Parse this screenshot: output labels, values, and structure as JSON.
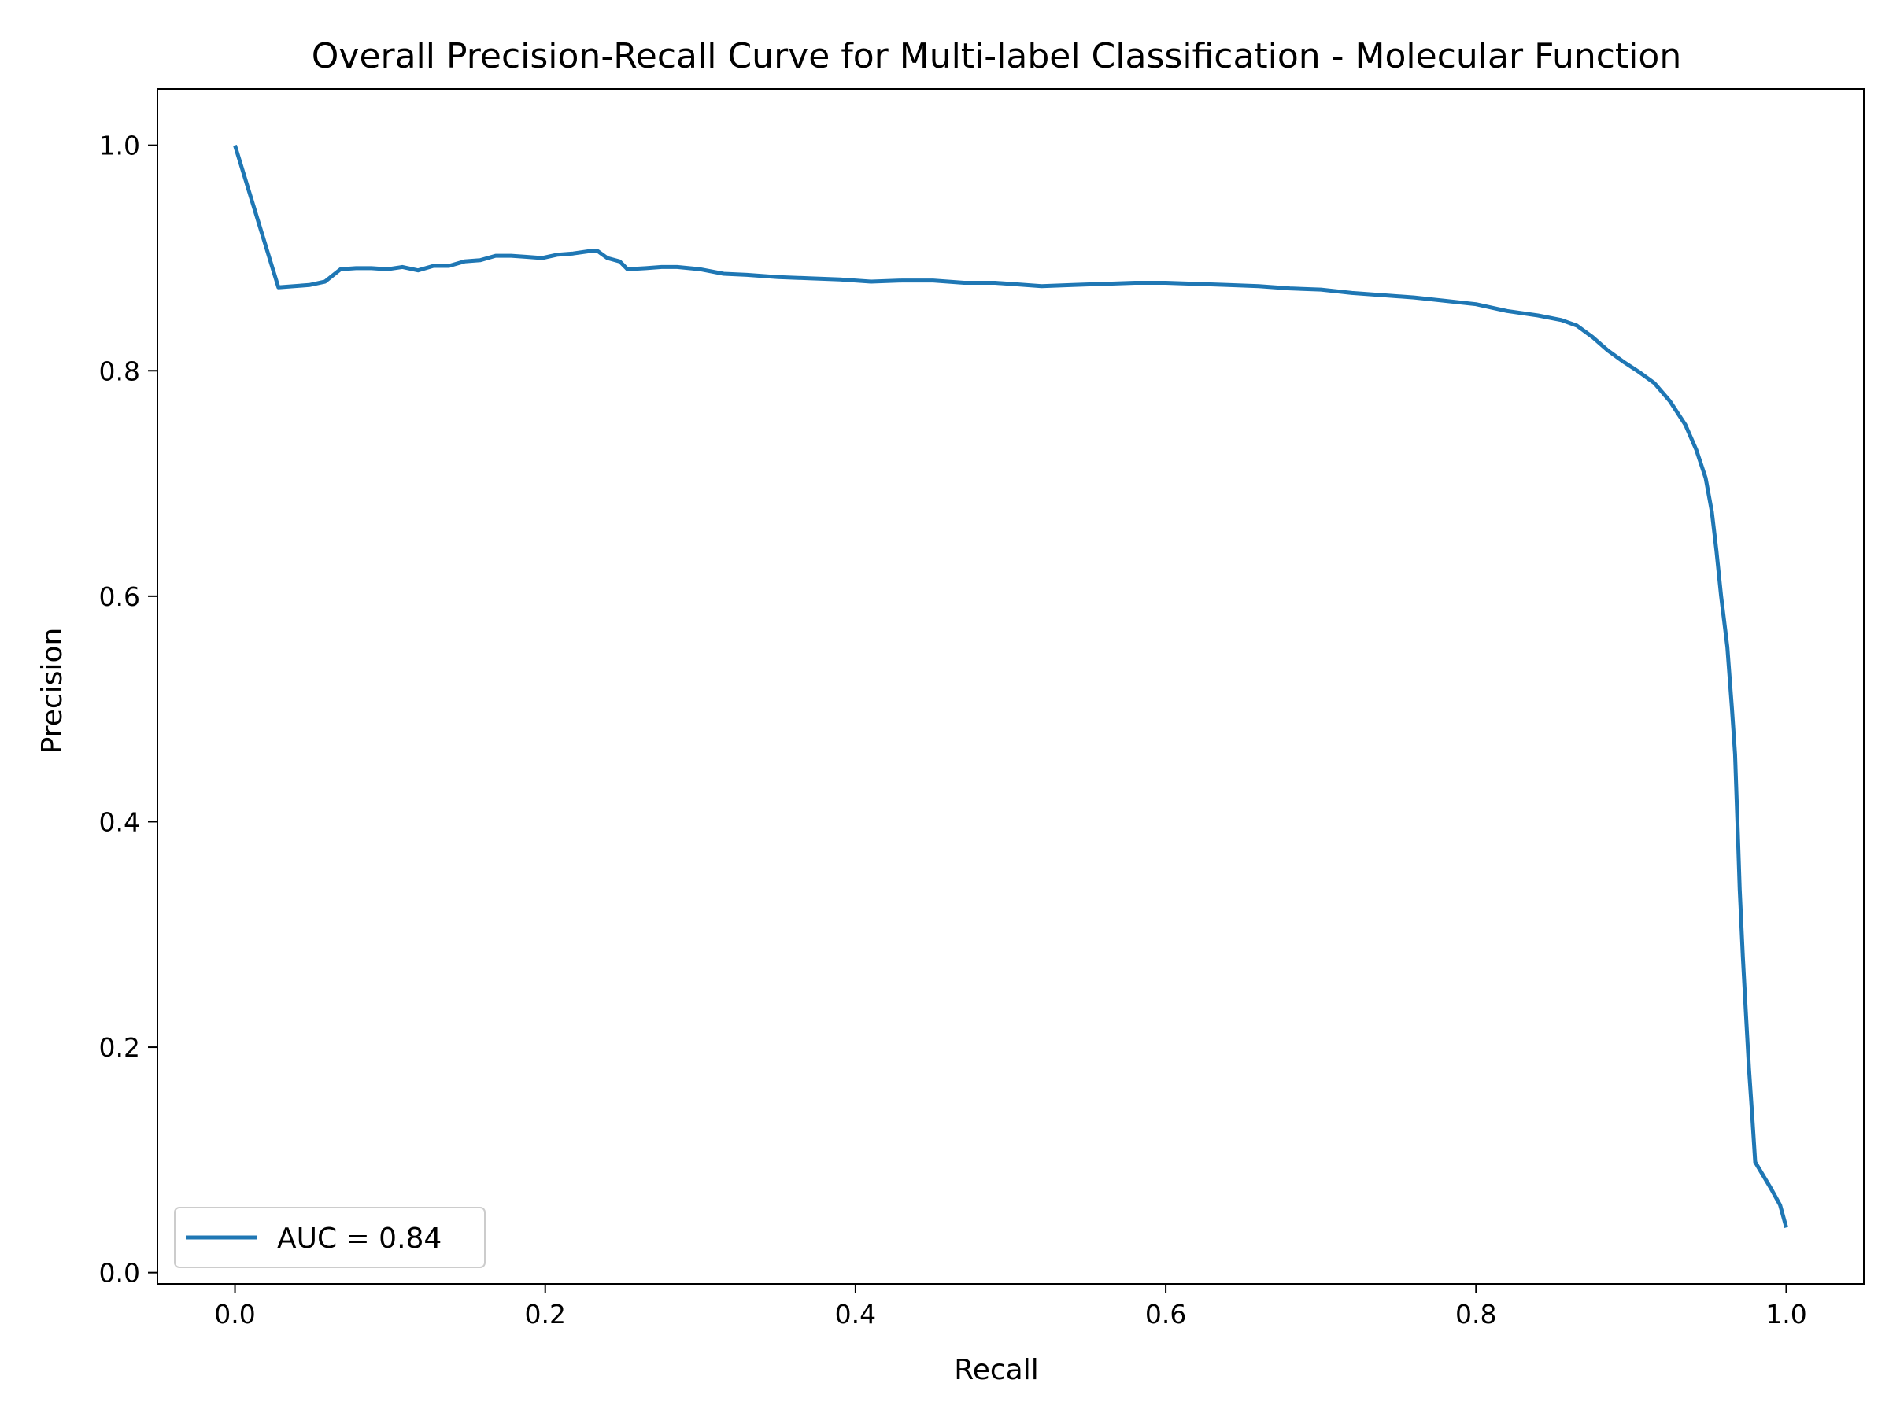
{
  "chart_data": {
    "type": "line",
    "title": "Overall Precision-Recall Curve for Multi-label Classification - Molecular Function",
    "xlabel": "Recall",
    "ylabel": "Precision",
    "xlim": [
      -0.05,
      1.05
    ],
    "ylim": [
      -0.01,
      1.05
    ],
    "xticks": [
      0.0,
      0.2,
      0.4,
      0.6,
      0.8,
      1.0
    ],
    "xtick_labels": [
      "0.0",
      "0.2",
      "0.4",
      "0.6",
      "0.8",
      "1.0"
    ],
    "yticks": [
      0.0,
      0.2,
      0.4,
      0.6,
      0.8,
      1.0
    ],
    "ytick_labels": [
      "0.0",
      "0.2",
      "0.4",
      "0.6",
      "0.8",
      "1.0"
    ],
    "grid": false,
    "legend_placement": "lower-left",
    "series": [
      {
        "name": "AUC = 0.84",
        "color": "#1f77b4",
        "points": [
          [
            0.0,
            1.0
          ],
          [
            0.028,
            0.874
          ],
          [
            0.048,
            0.876
          ],
          [
            0.058,
            0.879
          ],
          [
            0.068,
            0.89
          ],
          [
            0.078,
            0.891
          ],
          [
            0.088,
            0.891
          ],
          [
            0.098,
            0.89
          ],
          [
            0.108,
            0.892
          ],
          [
            0.118,
            0.889
          ],
          [
            0.128,
            0.893
          ],
          [
            0.138,
            0.893
          ],
          [
            0.148,
            0.897
          ],
          [
            0.158,
            0.898
          ],
          [
            0.168,
            0.902
          ],
          [
            0.178,
            0.902
          ],
          [
            0.188,
            0.901
          ],
          [
            0.198,
            0.9
          ],
          [
            0.208,
            0.903
          ],
          [
            0.218,
            0.904
          ],
          [
            0.228,
            0.906
          ],
          [
            0.234,
            0.906
          ],
          [
            0.24,
            0.9
          ],
          [
            0.248,
            0.897
          ],
          [
            0.253,
            0.89
          ],
          [
            0.265,
            0.891
          ],
          [
            0.275,
            0.892
          ],
          [
            0.285,
            0.892
          ],
          [
            0.3,
            0.89
          ],
          [
            0.315,
            0.886
          ],
          [
            0.33,
            0.885
          ],
          [
            0.35,
            0.883
          ],
          [
            0.37,
            0.882
          ],
          [
            0.39,
            0.881
          ],
          [
            0.41,
            0.879
          ],
          [
            0.43,
            0.88
          ],
          [
            0.45,
            0.88
          ],
          [
            0.47,
            0.878
          ],
          [
            0.49,
            0.878
          ],
          [
            0.5,
            0.877
          ],
          [
            0.52,
            0.875
          ],
          [
            0.54,
            0.876
          ],
          [
            0.56,
            0.877
          ],
          [
            0.58,
            0.878
          ],
          [
            0.6,
            0.878
          ],
          [
            0.62,
            0.877
          ],
          [
            0.64,
            0.876
          ],
          [
            0.66,
            0.875
          ],
          [
            0.68,
            0.873
          ],
          [
            0.7,
            0.872
          ],
          [
            0.72,
            0.869
          ],
          [
            0.74,
            0.867
          ],
          [
            0.76,
            0.865
          ],
          [
            0.78,
            0.862
          ],
          [
            0.8,
            0.859
          ],
          [
            0.82,
            0.853
          ],
          [
            0.84,
            0.849
          ],
          [
            0.855,
            0.845
          ],
          [
            0.865,
            0.84
          ],
          [
            0.875,
            0.83
          ],
          [
            0.885,
            0.818
          ],
          [
            0.895,
            0.808
          ],
          [
            0.905,
            0.799
          ],
          [
            0.915,
            0.789
          ],
          [
            0.925,
            0.773
          ],
          [
            0.935,
            0.752
          ],
          [
            0.942,
            0.73
          ],
          [
            0.948,
            0.705
          ],
          [
            0.952,
            0.675
          ],
          [
            0.955,
            0.64
          ],
          [
            0.958,
            0.6
          ],
          [
            0.962,
            0.555
          ],
          [
            0.965,
            0.5
          ],
          [
            0.967,
            0.46
          ],
          [
            0.968,
            0.42
          ],
          [
            0.969,
            0.38
          ],
          [
            0.97,
            0.34
          ],
          [
            0.972,
            0.28
          ],
          [
            0.974,
            0.23
          ],
          [
            0.976,
            0.18
          ],
          [
            0.978,
            0.14
          ],
          [
            0.98,
            0.098
          ],
          [
            0.99,
            0.075
          ],
          [
            0.996,
            0.06
          ],
          [
            1.0,
            0.04
          ]
        ]
      }
    ]
  }
}
